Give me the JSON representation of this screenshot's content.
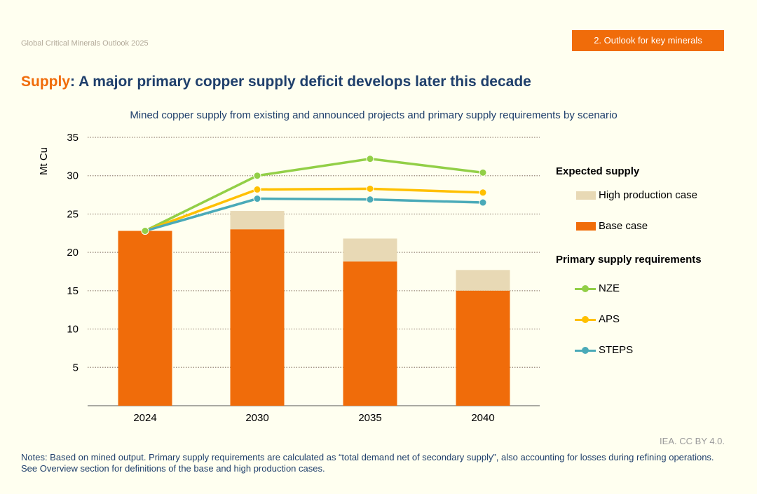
{
  "header": {
    "publication": "Global Critical Minerals Outlook 2025",
    "section_tag": "2.  Outlook for key minerals"
  },
  "title": {
    "highlight": "Supply",
    "separator": ": ",
    "text": "A major primary copper supply deficit develops later this decade"
  },
  "chart_data": {
    "type": "bar",
    "title": "Mined copper supply from existing and announced projects and primary supply requirements by scenario",
    "ylabel": "Mt Cu",
    "xlabel": "",
    "ylim": [
      0,
      35
    ],
    "yticks": [
      5,
      10,
      15,
      20,
      25,
      30,
      35
    ],
    "grid": true,
    "legend_placement": "right",
    "categories": [
      "2024",
      "2030",
      "2035",
      "2040"
    ],
    "bar_series": [
      {
        "name": "Base case",
        "values": [
          22.8,
          23.0,
          18.8,
          15.0
        ],
        "color": "#f06c0a"
      },
      {
        "name": "High production case",
        "values": [
          22.8,
          25.4,
          21.8,
          17.7
        ],
        "color": "#e8d9b5"
      }
    ],
    "line_series": [
      {
        "name": "NZE",
        "values": [
          22.8,
          30.0,
          32.2,
          30.4
        ],
        "color": "#92cf47"
      },
      {
        "name": "APS",
        "values": [
          22.8,
          28.2,
          28.3,
          27.8
        ],
        "color": "#ffc000"
      },
      {
        "name": "STEPS",
        "values": [
          22.8,
          27.0,
          26.9,
          26.5
        ],
        "color": "#4aaab8"
      }
    ],
    "legend": {
      "group1_title": "Expected supply",
      "group2_title": "Primary supply requirements"
    }
  },
  "credit": "IEA. CC BY 4.0.",
  "notes": "Notes: Based on mined output. Primary supply requirements are calculated as “total demand net of secondary supply”, also accounting for losses during refining operations. See Overview section for definitions of the base and high production cases."
}
